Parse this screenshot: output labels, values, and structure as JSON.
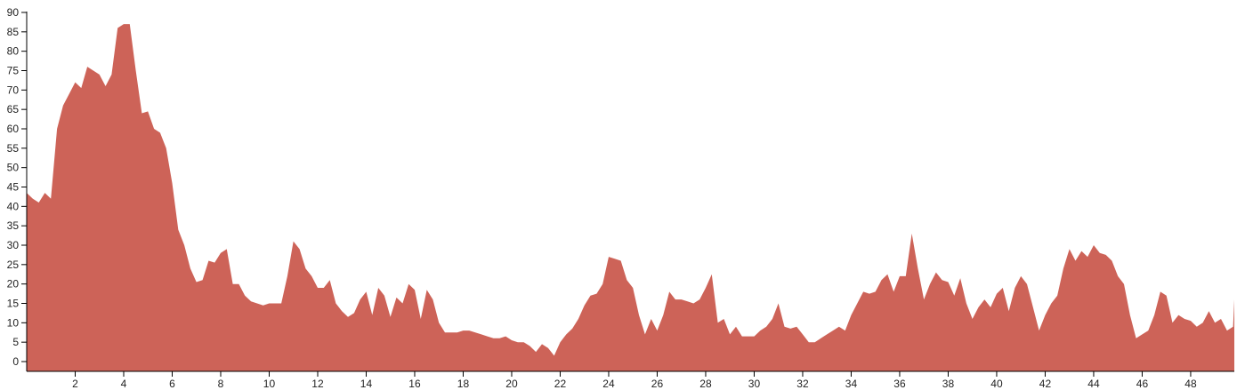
{
  "chart_data": {
    "type": "area",
    "title": "",
    "xlabel": "",
    "ylabel": "",
    "xlim": [
      0,
      49.8
    ],
    "ylim": [
      -2.5,
      90
    ],
    "grid": false,
    "color": "#cd6358",
    "x_ticks": [
      2,
      4,
      6,
      8,
      10,
      12,
      14,
      16,
      18,
      20,
      22,
      24,
      26,
      28,
      30,
      32,
      34,
      36,
      38,
      40,
      42,
      44,
      46,
      48
    ],
    "y_ticks": [
      0,
      5,
      10,
      15,
      20,
      25,
      30,
      35,
      40,
      45,
      50,
      55,
      60,
      65,
      70,
      75,
      80,
      85,
      90
    ],
    "x": [
      0,
      0.25,
      0.5,
      0.75,
      1,
      1.25,
      1.5,
      1.75,
      2,
      2.25,
      2.5,
      2.75,
      3,
      3.25,
      3.5,
      3.75,
      4,
      4.25,
      4.5,
      4.75,
      5,
      5.25,
      5.5,
      5.75,
      6,
      6.25,
      6.5,
      6.75,
      7,
      7.25,
      7.5,
      7.75,
      8,
      8.25,
      8.5,
      8.75,
      9,
      9.25,
      9.5,
      9.75,
      10,
      10.25,
      10.5,
      10.75,
      11,
      11.25,
      11.5,
      11.75,
      12,
      12.25,
      12.5,
      12.75,
      13,
      13.25,
      13.5,
      13.75,
      14,
      14.25,
      14.5,
      14.75,
      15,
      15.25,
      15.5,
      15.75,
      16,
      16.25,
      16.5,
      16.75,
      17,
      17.25,
      17.5,
      17.75,
      18,
      18.25,
      18.5,
      18.75,
      19,
      19.25,
      19.5,
      19.75,
      20,
      20.25,
      20.5,
      20.75,
      21,
      21.25,
      21.5,
      21.75,
      22,
      22.25,
      22.5,
      22.75,
      23,
      23.25,
      23.5,
      23.75,
      24,
      24.25,
      24.5,
      24.75,
      25,
      25.25,
      25.5,
      25.75,
      26,
      26.25,
      26.5,
      26.75,
      27,
      27.25,
      27.5,
      27.75,
      28,
      28.25,
      28.5,
      28.75,
      29,
      29.25,
      29.5,
      29.75,
      30,
      30.25,
      30.5,
      30.75,
      31,
      31.25,
      31.5,
      31.75,
      32,
      32.25,
      32.5,
      32.75,
      33,
      33.25,
      33.5,
      33.75,
      34,
      34.25,
      34.5,
      34.75,
      35,
      35.25,
      35.5,
      35.75,
      36,
      36.25,
      36.5,
      36.75,
      37,
      37.25,
      37.5,
      37.75,
      38,
      38.25,
      38.5,
      38.75,
      39,
      39.25,
      39.5,
      39.75,
      40,
      40.25,
      40.5,
      40.75,
      41,
      41.25,
      41.5,
      41.75,
      42,
      42.25,
      42.5,
      42.75,
      43,
      43.25,
      43.5,
      43.75,
      44,
      44.25,
      44.5,
      44.75,
      45,
      45.25,
      45.5,
      45.75,
      46,
      46.25,
      46.5,
      46.75,
      47,
      47.25,
      47.5,
      47.75,
      48,
      48.25,
      48.5,
      48.75,
      49,
      49.25,
      49.5,
      49.75,
      49.8
    ],
    "y": [
      43.5,
      42,
      41,
      43.5,
      42,
      60,
      66,
      69,
      72,
      70.5,
      76,
      75,
      74,
      71,
      74,
      86,
      87,
      87,
      75,
      64,
      64.5,
      60,
      59,
      55,
      46,
      34,
      30,
      24,
      20.5,
      21,
      26,
      25.5,
      28,
      29,
      20,
      20,
      17,
      15.5,
      15,
      14.5,
      15,
      15,
      15,
      22,
      31,
      29,
      24,
      22,
      19,
      19,
      21,
      15,
      13,
      11.5,
      12.5,
      16,
      18,
      12,
      19,
      17,
      11.5,
      16.5,
      15,
      20,
      18.5,
      11,
      18.5,
      16,
      10,
      7.5,
      7.5,
      7.5,
      8,
      8,
      7.5,
      7,
      6.5,
      6,
      6,
      6.5,
      5.5,
      5,
      5,
      4,
      2.5,
      4.5,
      3.5,
      1.5,
      5,
      7,
      8.5,
      11,
      14.5,
      17,
      17.5,
      20,
      27,
      26.5,
      26,
      21,
      19,
      12,
      7,
      11,
      8,
      12,
      18,
      16,
      16,
      15.5,
      15,
      16,
      19,
      22.5,
      10,
      11,
      7,
      9,
      6.5,
      6.5,
      6.5,
      8,
      9,
      11,
      15,
      9,
      8.5,
      9,
      7,
      5,
      5,
      6,
      7,
      8,
      9,
      8,
      12,
      15,
      18,
      17.5,
      18,
      21,
      22.5,
      18,
      22,
      22,
      33,
      24,
      16,
      20,
      23,
      21,
      20.5,
      17,
      21.5,
      15,
      11,
      14,
      16,
      14,
      17.5,
      19,
      13,
      19,
      22,
      20,
      14,
      8,
      12,
      15,
      17,
      24,
      29,
      26,
      28.5,
      27,
      30,
      28,
      27.5,
      26,
      22,
      20,
      12,
      6,
      7,
      8,
      12,
      18,
      17,
      10,
      12,
      11,
      10.5,
      9,
      10,
      13,
      10,
      11,
      8,
      9,
      16
    ]
  }
}
